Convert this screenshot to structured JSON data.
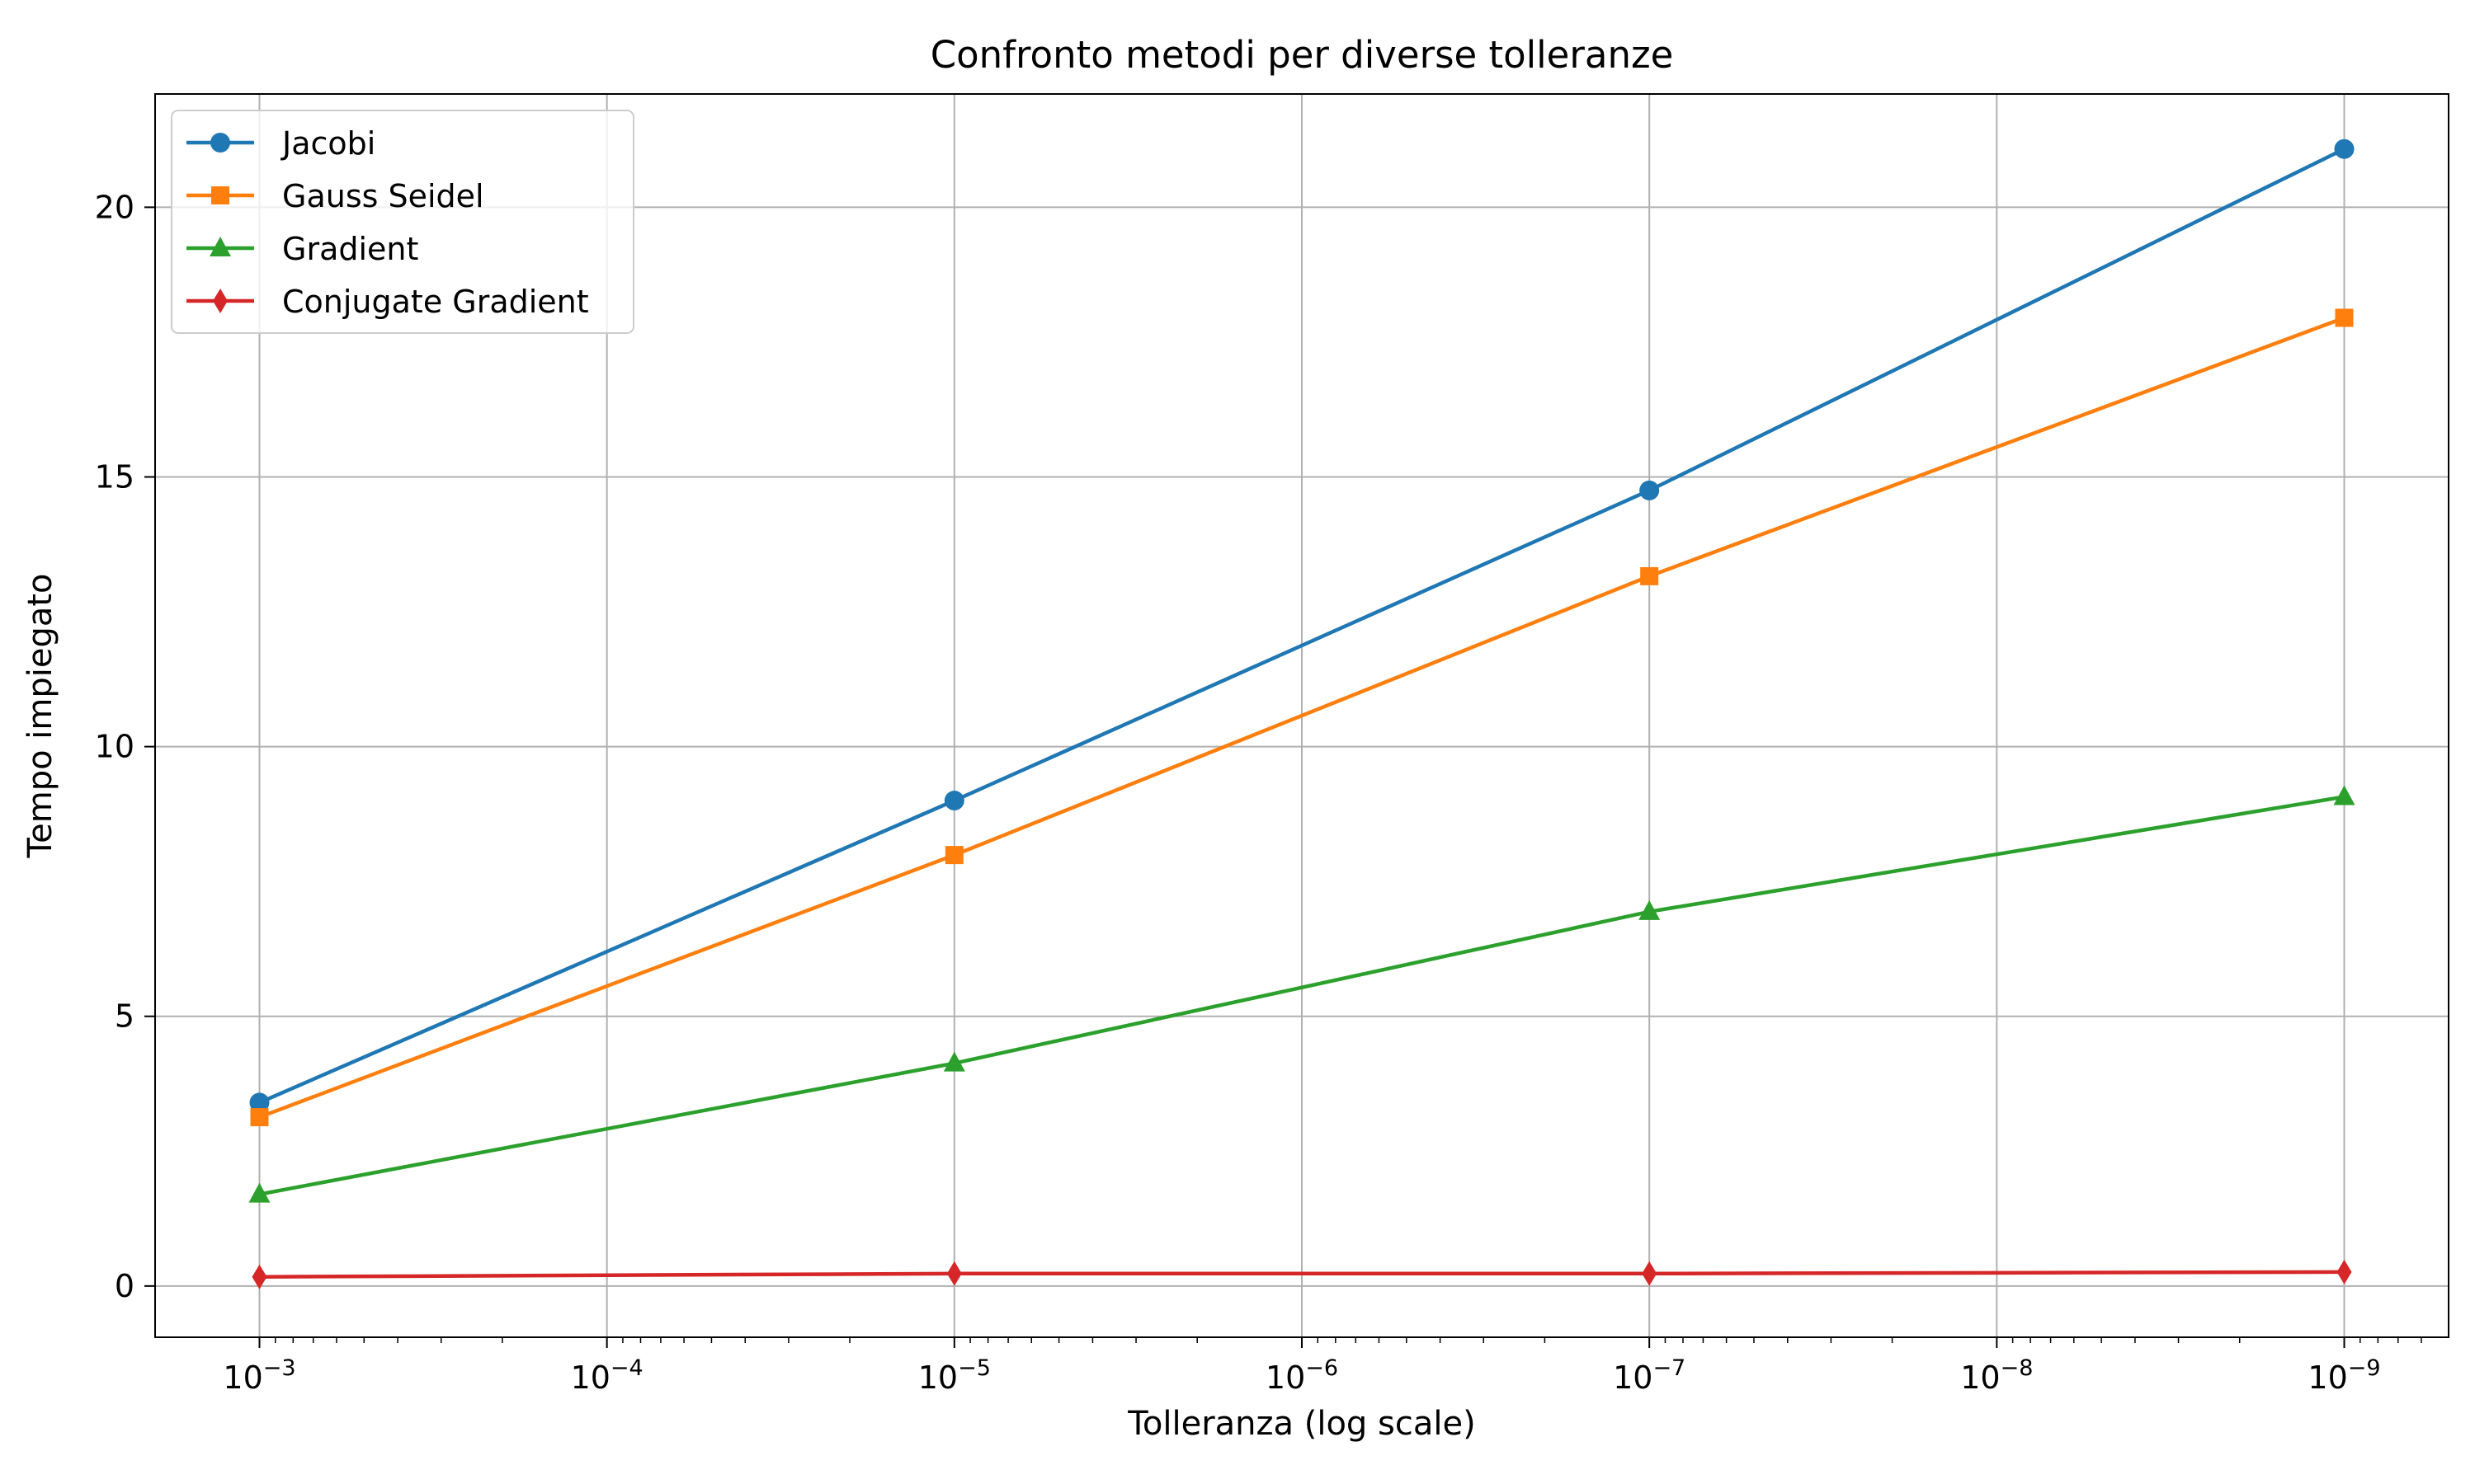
{
  "chart_data": {
    "type": "line",
    "title": "Confronto metodi per diverse tolleranze",
    "xlabel": "Tolleranza (log scale)",
    "ylabel": "Tempo impiegato",
    "x_scale": "log",
    "x_inverted": true,
    "x": [
      0.001,
      1e-05,
      1e-07,
      1e-09
    ],
    "xticks": [
      {
        "value": 0.001,
        "mantissa": "10",
        "exp": "−3"
      },
      {
        "value": 0.0001,
        "mantissa": "10",
        "exp": "−4"
      },
      {
        "value": 1e-05,
        "mantissa": "10",
        "exp": "−5"
      },
      {
        "value": 1e-06,
        "mantissa": "10",
        "exp": "−6"
      },
      {
        "value": 1e-07,
        "mantissa": "10",
        "exp": "−7"
      },
      {
        "value": 1e-08,
        "mantissa": "10",
        "exp": "−8"
      },
      {
        "value": 1e-09,
        "mantissa": "10",
        "exp": "−9"
      }
    ],
    "yticks": [
      0,
      5,
      10,
      15,
      20
    ],
    "ylim": [
      -0.95,
      22.1
    ],
    "grid": true,
    "legend_position": "top-left",
    "series": [
      {
        "name": "Jacobi",
        "color": "#1f77b4",
        "marker": "circle",
        "values": [
          3.4,
          9.0,
          14.75,
          21.08
        ]
      },
      {
        "name": "Gauss Seidel",
        "color": "#ff7f0e",
        "marker": "square",
        "values": [
          3.13,
          7.99,
          13.16,
          17.95
        ]
      },
      {
        "name": "Gradient",
        "color": "#2ca02c",
        "marker": "triangle",
        "values": [
          1.7,
          4.13,
          6.94,
          9.07
        ]
      },
      {
        "name": "Conjugate Gradient",
        "color": "#d62728",
        "marker": "diamond",
        "values": [
          0.17,
          0.23,
          0.23,
          0.26
        ]
      }
    ]
  }
}
